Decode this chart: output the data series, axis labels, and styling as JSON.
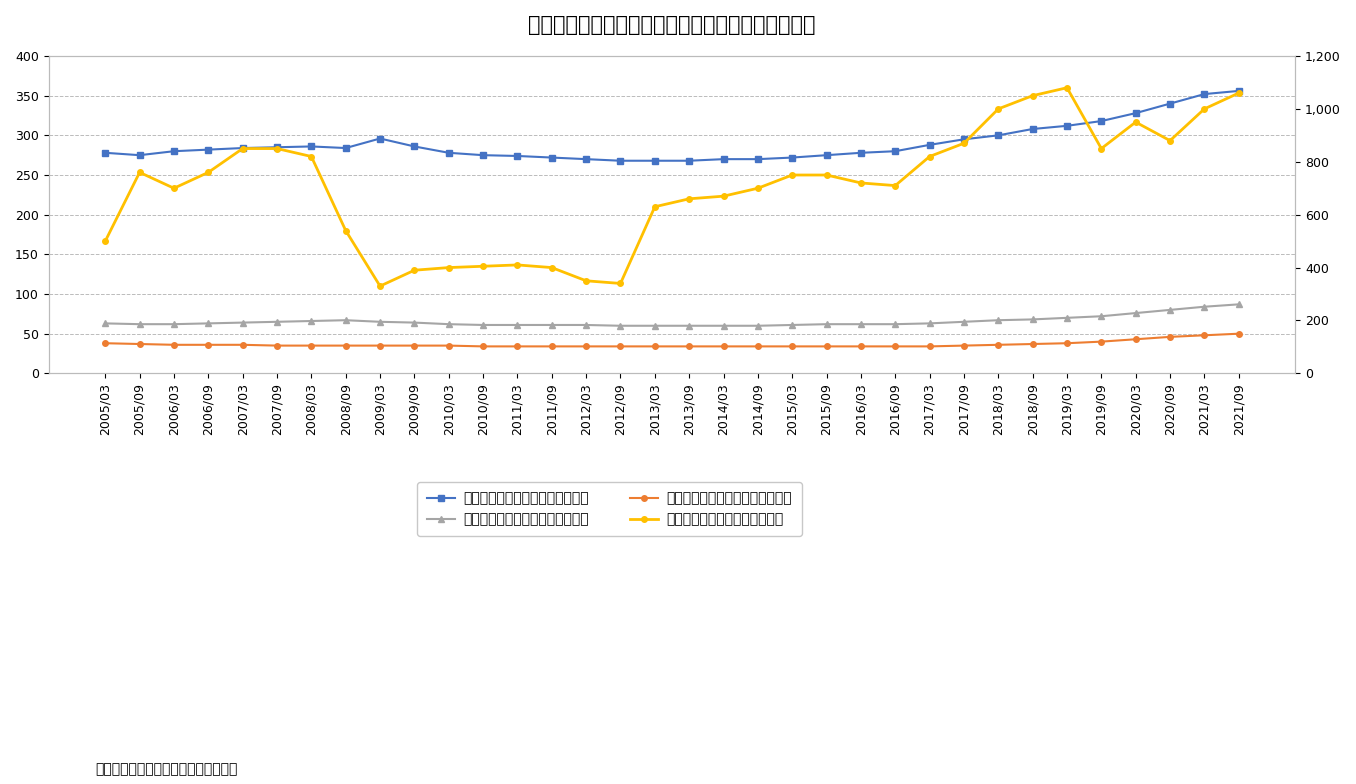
{
  "title": "図表３：民間非金融法人企業の金融負債残高の推移",
  "source_note": "（資料：日本銀行のデータから作成）",
  "x_labels": [
    "2005/03",
    "2005/09",
    "2006/03",
    "2006/09",
    "2007/03",
    "2007/09",
    "2008/03",
    "2008/09",
    "2009/03",
    "2009/09",
    "2010/03",
    "2010/09",
    "2011/03",
    "2011/09",
    "2012/03",
    "2012/09",
    "2013/03",
    "2013/09",
    "2014/03",
    "2014/09",
    "2015/03",
    "2015/09",
    "2016/03",
    "2016/09",
    "2017/03",
    "2017/09",
    "2018/03",
    "2018/09",
    "2019/03",
    "2019/09",
    "2020/03",
    "2020/09",
    "2021/03",
    "2021/09"
  ],
  "blue_line": [
    278,
    275,
    280,
    282,
    284,
    285,
    286,
    284,
    296,
    286,
    278,
    275,
    274,
    272,
    270,
    268,
    268,
    268,
    270,
    270,
    272,
    275,
    278,
    280,
    288,
    295,
    300,
    308,
    312,
    318,
    328,
    340,
    352,
    356
  ],
  "orange_line": [
    38,
    37,
    36,
    36,
    36,
    35,
    35,
    35,
    35,
    35,
    35,
    34,
    34,
    34,
    34,
    34,
    34,
    34,
    34,
    34,
    34,
    34,
    34,
    34,
    34,
    35,
    36,
    37,
    38,
    40,
    43,
    46,
    48,
    50
  ],
  "gray_line": [
    63,
    62,
    62,
    63,
    64,
    65,
    66,
    67,
    65,
    64,
    62,
    61,
    61,
    61,
    61,
    60,
    60,
    60,
    60,
    60,
    61,
    62,
    62,
    62,
    63,
    65,
    67,
    68,
    70,
    72,
    76,
    80,
    84,
    87
  ],
  "yellow_line": [
    500,
    760,
    700,
    760,
    850,
    850,
    820,
    540,
    330,
    390,
    400,
    405,
    410,
    400,
    350,
    340,
    630,
    660,
    670,
    700,
    750,
    750,
    720,
    710,
    820,
    870,
    1000,
    1050,
    1080,
    850,
    950,
    880,
    1000,
    1060
  ],
  "left_ylim": [
    0,
    400
  ],
  "right_ylim": [
    0,
    1200
  ],
  "left_yticks": [
    0,
    50,
    100,
    150,
    200,
    250,
    300,
    350,
    400
  ],
  "right_yticks": [
    0,
    200,
    400,
    600,
    800,
    1000,
    1200
  ],
  "legend_blue": "民間金融機関からの借入（左軸）",
  "legend_orange": "公的金融機関からの借入（左軸）",
  "legend_gray": "債務証券による資金調達（左軸）",
  "legend_yellow": "株式等による資金調達（右軸）",
  "blue_color": "#4472C4",
  "orange_color": "#ED7D31",
  "gray_color": "#A5A5A5",
  "yellow_color": "#FFC000",
  "background_color": "#FFFFFF",
  "grid_color": "#AAAAAA",
  "title_fontsize": 15,
  "tick_fontsize": 9,
  "legend_fontsize": 10,
  "source_fontsize": 10
}
